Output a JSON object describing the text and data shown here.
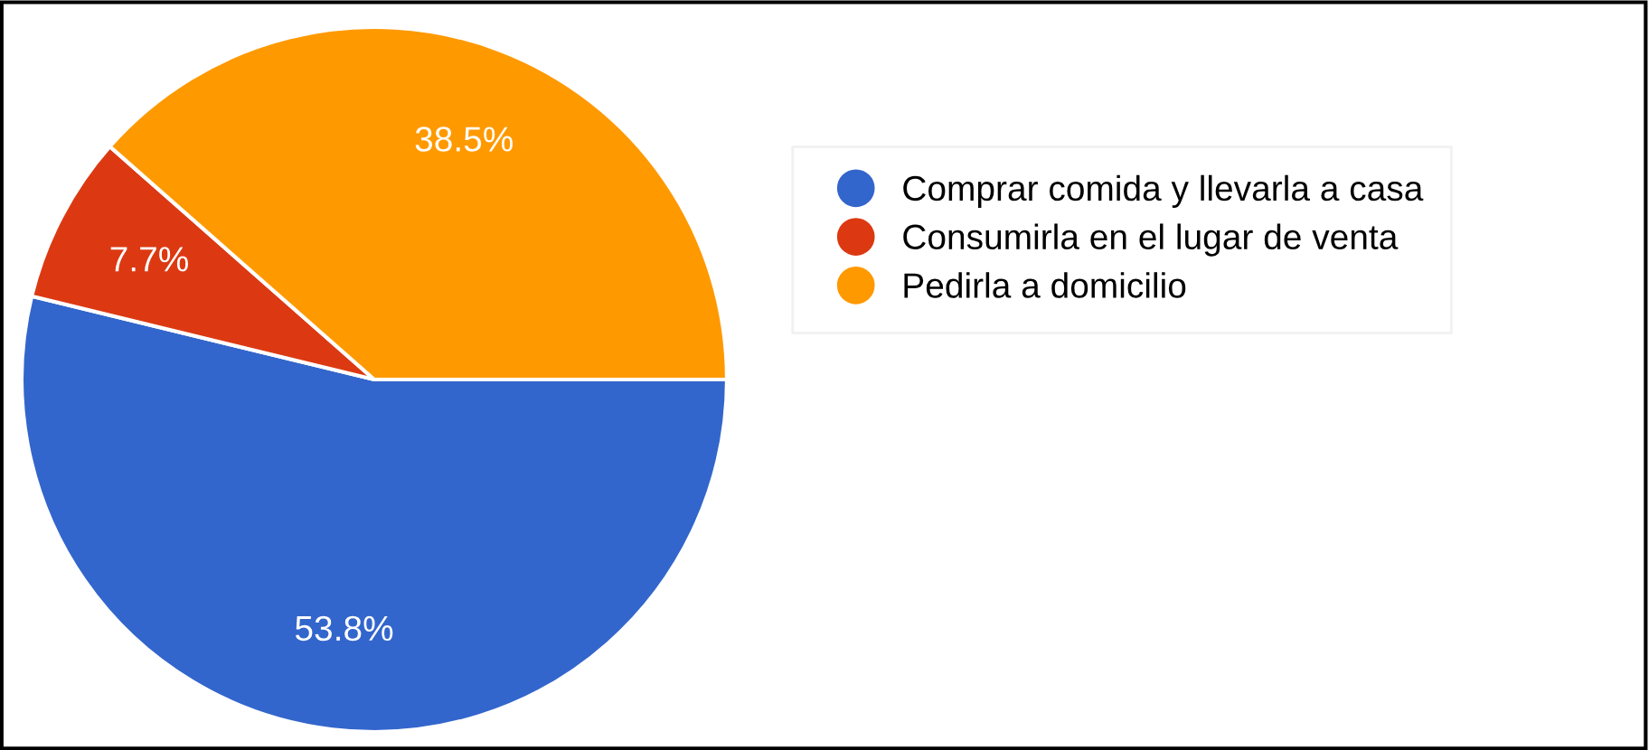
{
  "chart_data": {
    "type": "pie",
    "categories": [
      "Comprar comida y llevarla a casa",
      "Consumirla en el lugar de venta",
      "Pedirla a domicilio"
    ],
    "values": [
      53.8,
      7.7,
      38.5
    ],
    "colors": [
      "#3366cc",
      "#dc3912",
      "#ff9900"
    ],
    "value_labels": [
      "53.8%",
      "7.7%",
      "38.5%"
    ],
    "legend": "right"
  }
}
